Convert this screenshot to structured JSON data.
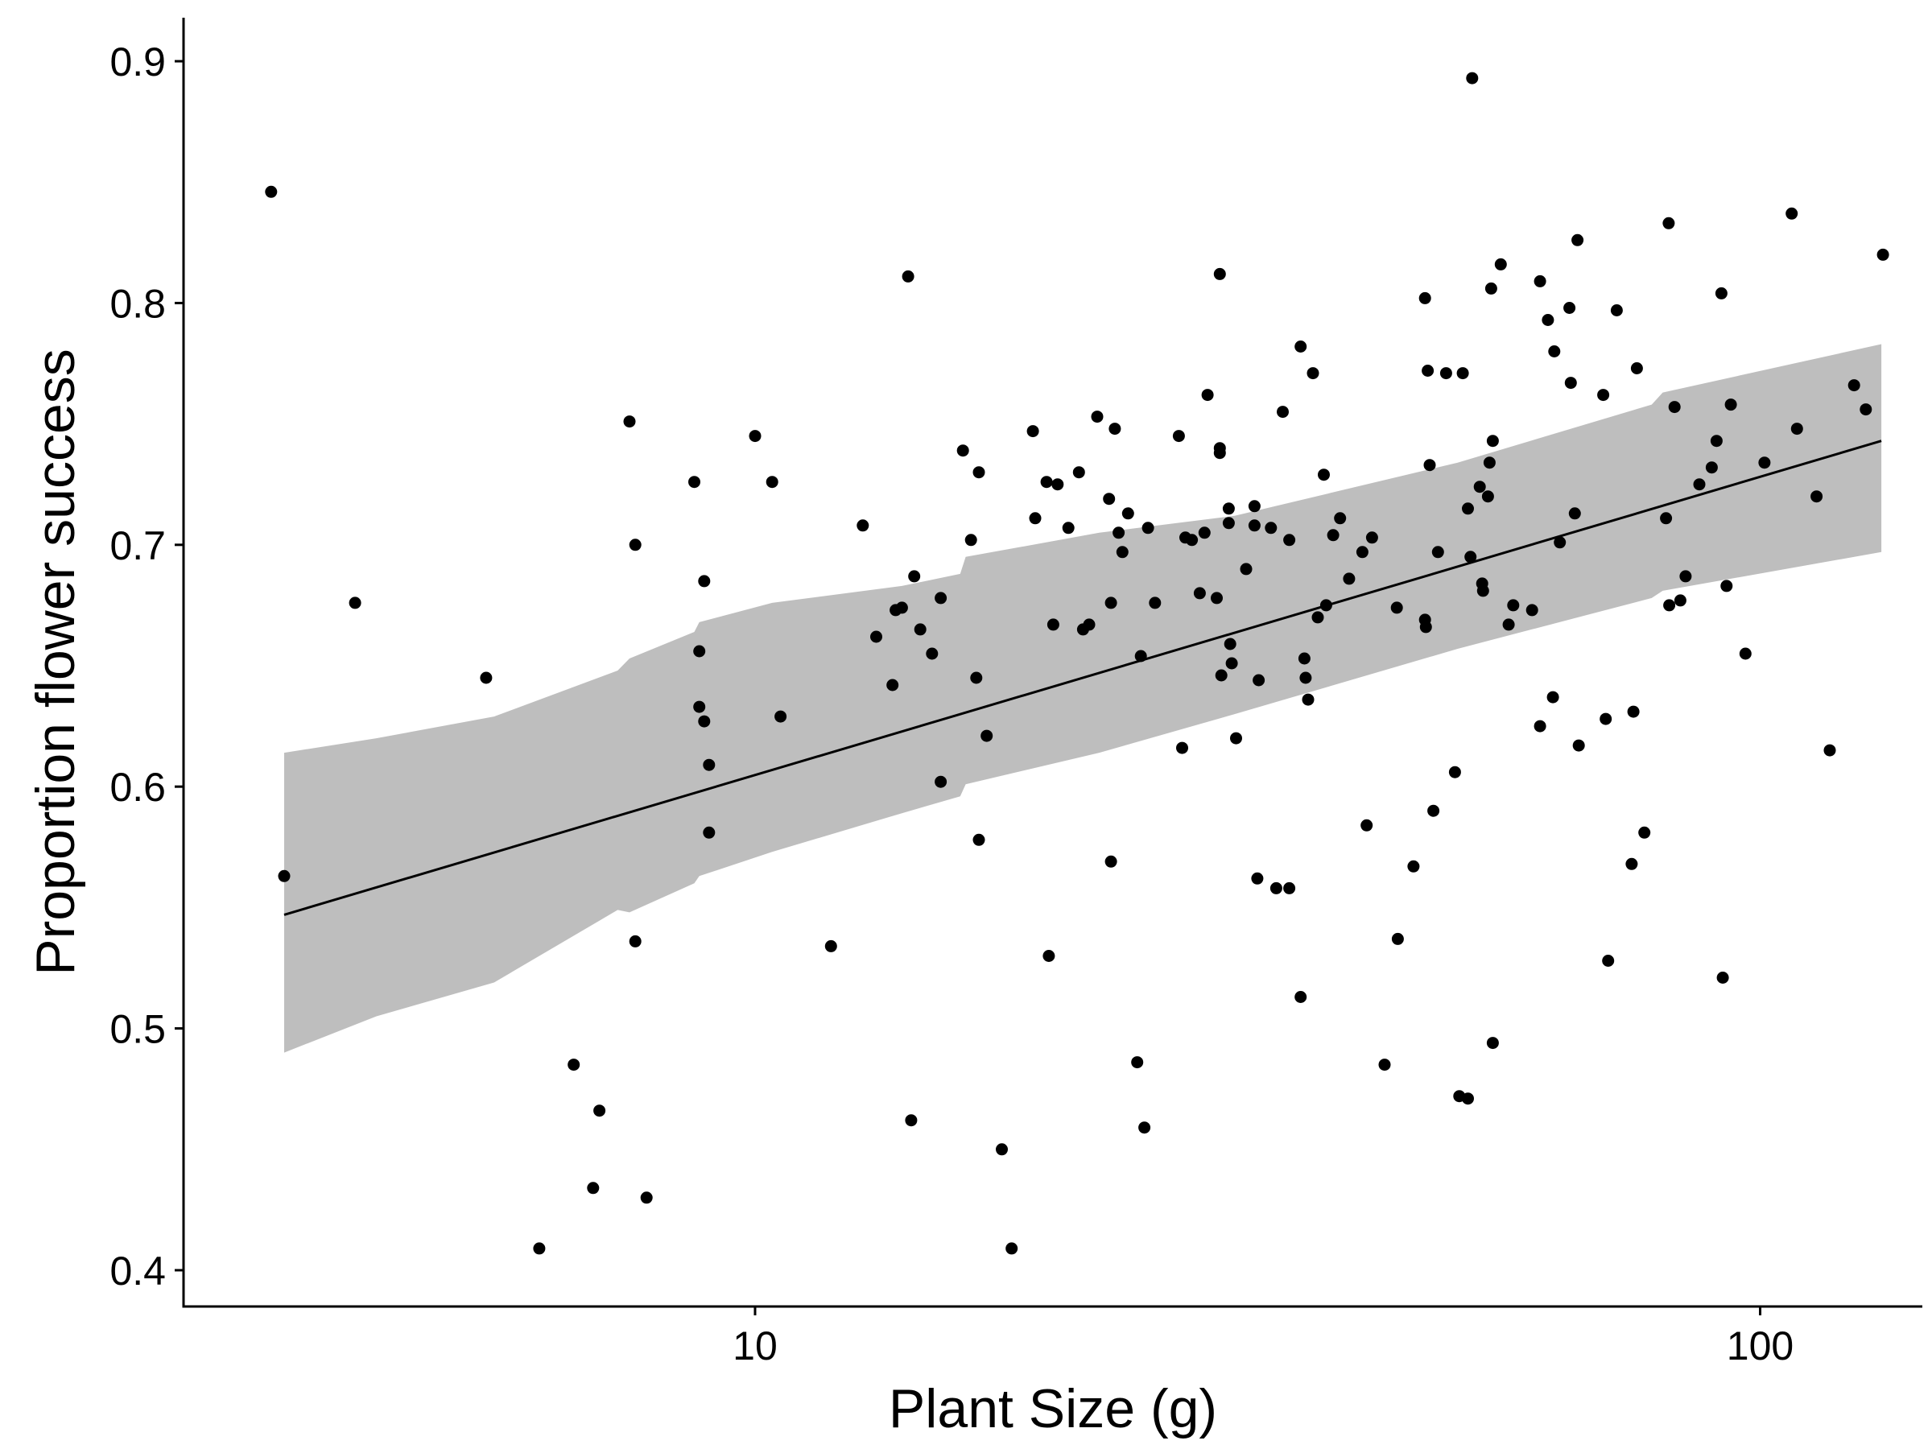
{
  "chart_data": {
    "type": "scatter",
    "xlabel": "Plant Size (g)",
    "ylabel": "Proportion flower success",
    "x_scale": "log10",
    "xlim": [
      2.7,
      145
    ],
    "ylim": [
      0.385,
      0.918
    ],
    "x_ticks": [
      10,
      100
    ],
    "x_tick_labels": [
      "10",
      "100"
    ],
    "y_ticks": [
      0.4,
      0.5,
      0.6,
      0.7,
      0.8,
      0.9
    ],
    "y_tick_labels": [
      "0.4",
      "0.5",
      "0.6",
      "0.7",
      "0.8",
      "0.9"
    ],
    "grid": false,
    "legend": "none",
    "colors": {
      "points": "#000000",
      "band": "#bebebe",
      "line": "#000000",
      "axis": "#000000"
    },
    "trend_line": {
      "x": [
        3.4,
        132
      ],
      "y": [
        0.547,
        0.743
      ]
    },
    "confidence_band": {
      "x": [
        3.4,
        4.2,
        5.5,
        7.3,
        7.5,
        8.7,
        8.8,
        10.4,
        14.0,
        16.0,
        16.2,
        22.0,
        30.0,
        50.0,
        78.0,
        80.0,
        132.0
      ],
      "upper": [
        0.614,
        0.62,
        0.629,
        0.648,
        0.653,
        0.664,
        0.668,
        0.676,
        0.683,
        0.688,
        0.695,
        0.705,
        0.712,
        0.734,
        0.758,
        0.763,
        0.783
      ],
      "lower": [
        0.49,
        0.505,
        0.519,
        0.549,
        0.548,
        0.56,
        0.563,
        0.573,
        0.589,
        0.596,
        0.601,
        0.614,
        0.63,
        0.657,
        0.678,
        0.681,
        0.697
      ]
    },
    "points": [
      [
        3.3,
        0.846
      ],
      [
        3.4,
        0.563
      ],
      [
        4.0,
        0.676
      ],
      [
        5.4,
        0.645
      ],
      [
        6.1,
        0.409
      ],
      [
        6.6,
        0.485
      ],
      [
        6.9,
        0.434
      ],
      [
        7.0,
        0.466
      ],
      [
        7.5,
        0.751
      ],
      [
        7.6,
        0.536
      ],
      [
        7.6,
        0.7
      ],
      [
        7.8,
        0.43
      ],
      [
        8.7,
        0.726
      ],
      [
        8.8,
        0.656
      ],
      [
        8.8,
        0.633
      ],
      [
        8.9,
        0.685
      ],
      [
        8.9,
        0.627
      ],
      [
        9.0,
        0.609
      ],
      [
        9.0,
        0.581
      ],
      [
        10.0,
        0.745
      ],
      [
        10.4,
        0.726
      ],
      [
        10.6,
        0.629
      ],
      [
        11.9,
        0.534
      ],
      [
        12.8,
        0.708
      ],
      [
        13.2,
        0.662
      ],
      [
        13.7,
        0.642
      ],
      [
        13.8,
        0.673
      ],
      [
        14.0,
        0.674
      ],
      [
        14.2,
        0.811
      ],
      [
        14.3,
        0.462
      ],
      [
        14.4,
        0.687
      ],
      [
        14.6,
        0.665
      ],
      [
        15.0,
        0.655
      ],
      [
        15.3,
        0.678
      ],
      [
        15.3,
        0.602
      ],
      [
        16.1,
        0.739
      ],
      [
        16.4,
        0.702
      ],
      [
        16.6,
        0.645
      ],
      [
        16.7,
        0.73
      ],
      [
        16.7,
        0.578
      ],
      [
        17.0,
        0.621
      ],
      [
        17.6,
        0.45
      ],
      [
        18.0,
        0.409
      ],
      [
        18.9,
        0.747
      ],
      [
        19.0,
        0.711
      ],
      [
        19.5,
        0.726
      ],
      [
        19.6,
        0.53
      ],
      [
        19.8,
        0.667
      ],
      [
        20.0,
        0.725
      ],
      [
        20.5,
        0.707
      ],
      [
        21.0,
        0.73
      ],
      [
        21.2,
        0.665
      ],
      [
        21.5,
        0.667
      ],
      [
        21.9,
        0.753
      ],
      [
        22.5,
        0.719
      ],
      [
        22.6,
        0.676
      ],
      [
        22.6,
        0.569
      ],
      [
        22.8,
        0.748
      ],
      [
        23.0,
        0.705
      ],
      [
        23.2,
        0.697
      ],
      [
        23.5,
        0.713
      ],
      [
        24.0,
        0.486
      ],
      [
        24.2,
        0.654
      ],
      [
        24.4,
        0.459
      ],
      [
        24.6,
        0.707
      ],
      [
        25.0,
        0.676
      ],
      [
        26.4,
        0.745
      ],
      [
        26.6,
        0.616
      ],
      [
        26.8,
        0.703
      ],
      [
        27.2,
        0.702
      ],
      [
        27.7,
        0.68
      ],
      [
        28.0,
        0.705
      ],
      [
        28.2,
        0.762
      ],
      [
        28.8,
        0.678
      ],
      [
        29.0,
        0.812
      ],
      [
        29.0,
        0.74
      ],
      [
        29.0,
        0.738
      ],
      [
        29.1,
        0.646
      ],
      [
        29.6,
        0.715
      ],
      [
        29.6,
        0.709
      ],
      [
        29.7,
        0.659
      ],
      [
        29.8,
        0.651
      ],
      [
        30.1,
        0.62
      ],
      [
        30.8,
        0.69
      ],
      [
        31.4,
        0.716
      ],
      [
        31.4,
        0.708
      ],
      [
        31.6,
        0.562
      ],
      [
        31.7,
        0.644
      ],
      [
        32.6,
        0.707
      ],
      [
        33.0,
        0.558
      ],
      [
        33.5,
        0.755
      ],
      [
        34.0,
        0.558
      ],
      [
        34.0,
        0.702
      ],
      [
        34.9,
        0.782
      ],
      [
        34.9,
        0.513
      ],
      [
        35.2,
        0.653
      ],
      [
        35.3,
        0.645
      ],
      [
        35.5,
        0.636
      ],
      [
        35.9,
        0.771
      ],
      [
        36.3,
        0.67
      ],
      [
        36.8,
        0.729
      ],
      [
        37.0,
        0.675
      ],
      [
        37.6,
        0.704
      ],
      [
        38.2,
        0.711
      ],
      [
        39.0,
        0.686
      ],
      [
        40.2,
        0.697
      ],
      [
        40.6,
        0.584
      ],
      [
        41.1,
        0.703
      ],
      [
        42.3,
        0.485
      ],
      [
        43.5,
        0.674
      ],
      [
        43.6,
        0.537
      ],
      [
        45.2,
        0.567
      ],
      [
        46.4,
        0.802
      ],
      [
        46.4,
        0.669
      ],
      [
        46.5,
        0.666
      ],
      [
        46.7,
        0.772
      ],
      [
        46.9,
        0.733
      ],
      [
        47.3,
        0.59
      ],
      [
        47.8,
        0.697
      ],
      [
        48.7,
        0.771
      ],
      [
        49.7,
        0.606
      ],
      [
        50.2,
        0.472
      ],
      [
        50.6,
        0.771
      ],
      [
        51.2,
        0.471
      ],
      [
        51.2,
        0.715
      ],
      [
        51.5,
        0.695
      ],
      [
        51.7,
        0.893
      ],
      [
        52.6,
        0.724
      ],
      [
        52.9,
        0.684
      ],
      [
        53.0,
        0.681
      ],
      [
        53.6,
        0.72
      ],
      [
        53.8,
        0.734
      ],
      [
        54.0,
        0.806
      ],
      [
        54.2,
        0.743
      ],
      [
        54.2,
        0.494
      ],
      [
        55.2,
        0.816
      ],
      [
        56.2,
        0.667
      ],
      [
        56.8,
        0.675
      ],
      [
        59.3,
        0.673
      ],
      [
        60.4,
        0.809
      ],
      [
        60.4,
        0.625
      ],
      [
        61.5,
        0.793
      ],
      [
        62.2,
        0.637
      ],
      [
        62.4,
        0.78
      ],
      [
        63.2,
        0.701
      ],
      [
        64.6,
        0.798
      ],
      [
        64.8,
        0.767
      ],
      [
        65.4,
        0.713
      ],
      [
        65.8,
        0.826
      ],
      [
        66.0,
        0.617
      ],
      [
        69.8,
        0.762
      ],
      [
        70.2,
        0.628
      ],
      [
        70.6,
        0.528
      ],
      [
        72.0,
        0.797
      ],
      [
        74.5,
        0.568
      ],
      [
        74.8,
        0.631
      ],
      [
        75.4,
        0.773
      ],
      [
        76.7,
        0.581
      ],
      [
        80.6,
        0.711
      ],
      [
        81.1,
        0.833
      ],
      [
        81.2,
        0.675
      ],
      [
        82.2,
        0.757
      ],
      [
        83.3,
        0.677
      ],
      [
        84.3,
        0.687
      ],
      [
        87.0,
        0.725
      ],
      [
        89.5,
        0.732
      ],
      [
        90.5,
        0.743
      ],
      [
        91.5,
        0.804
      ],
      [
        91.8,
        0.521
      ],
      [
        92.6,
        0.683
      ],
      [
        93.5,
        0.758
      ],
      [
        96.7,
        0.655
      ],
      [
        101.0,
        0.734
      ],
      [
        107.5,
        0.837
      ],
      [
        108.8,
        0.748
      ],
      [
        113.8,
        0.72
      ],
      [
        117.3,
        0.615
      ],
      [
        124.0,
        0.766
      ],
      [
        127.4,
        0.756
      ],
      [
        132.5,
        0.82
      ]
    ]
  }
}
